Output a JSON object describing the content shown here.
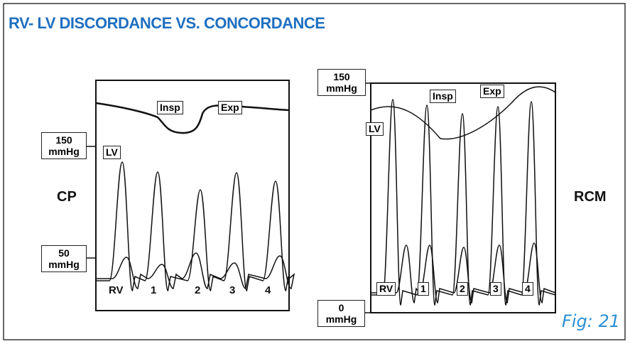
{
  "title": "RV- LV DISCORDANCE VS. CONCORDANCE",
  "figure_label": "Fig: 21",
  "panels": [
    {
      "name": "CP",
      "pressure_labels": [
        [
          "150",
          "mmHg"
        ],
        [
          "50",
          "mmHg"
        ]
      ],
      "phases": [
        "Insp",
        "Exp"
      ],
      "traces": [
        "LV",
        "RV"
      ],
      "beats": [
        "1",
        "2",
        "3",
        "4"
      ]
    },
    {
      "name": "RCM",
      "pressure_labels": [
        [
          "150",
          "mmHg"
        ],
        [
          "0",
          "mmHg"
        ]
      ],
      "phases": [
        "Insp",
        "Exp"
      ],
      "traces": [
        "LV",
        "RV"
      ],
      "beats": [
        "1",
        "2",
        "3",
        "4"
      ]
    }
  ]
}
